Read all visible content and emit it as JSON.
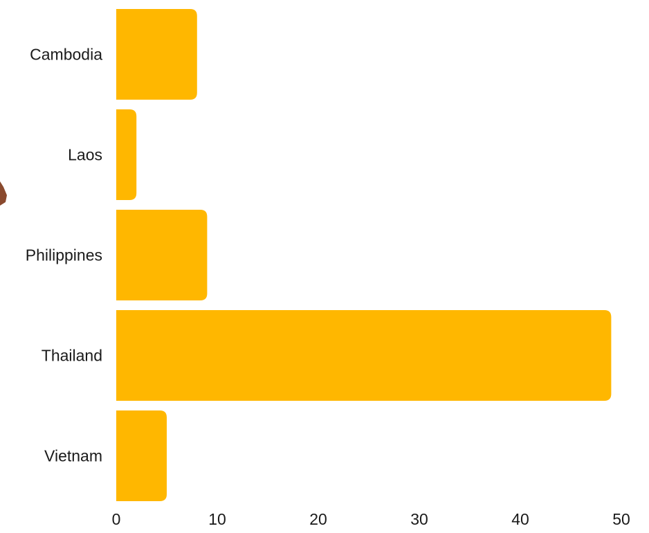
{
  "chart_data": {
    "type": "bar",
    "orientation": "horizontal",
    "categories": [
      "Cambodia",
      "Laos",
      "Philippines",
      "Thailand",
      "Vietnam"
    ],
    "values": [
      8,
      2,
      9,
      49,
      5
    ],
    "xlim": [
      0,
      50
    ],
    "xticks": [
      "0",
      "10",
      "20",
      "30",
      "40",
      "50"
    ],
    "bar_color": "#FFB700",
    "grid": false,
    "legend": "none"
  }
}
